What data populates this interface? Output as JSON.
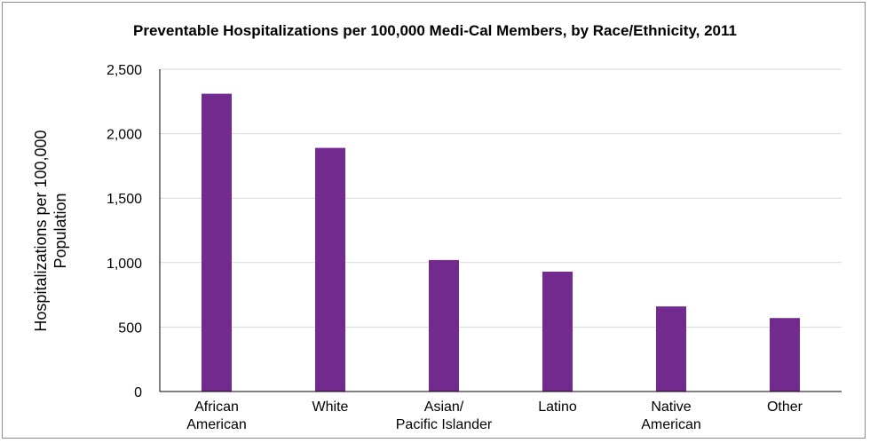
{
  "chart_data": {
    "type": "bar",
    "title": "Preventable Hospitalizations per 100,000 Medi-Cal Members, by Race/Ethnicity, 2011",
    "ylabel_lines": [
      "Hospitalizations per 100,000",
      "Population"
    ],
    "xlabel": "",
    "ylim": [
      0,
      2500
    ],
    "yticks": [
      0,
      500,
      1000,
      1500,
      2000,
      2500
    ],
    "ytick_labels": [
      "0",
      "500",
      "1,000",
      "1,500",
      "2,000",
      "2,500"
    ],
    "grid": true,
    "categories": [
      [
        "African",
        "American"
      ],
      [
        "White"
      ],
      [
        "Asian/",
        "Pacific Islander"
      ],
      [
        "Latino"
      ],
      [
        "Native",
        "American"
      ],
      [
        "Other"
      ]
    ],
    "values": [
      2310,
      1890,
      1020,
      930,
      660,
      570
    ],
    "bar_color": "#722a8e",
    "grid_color": "#d9d9d9",
    "axis_color": "#000000"
  }
}
